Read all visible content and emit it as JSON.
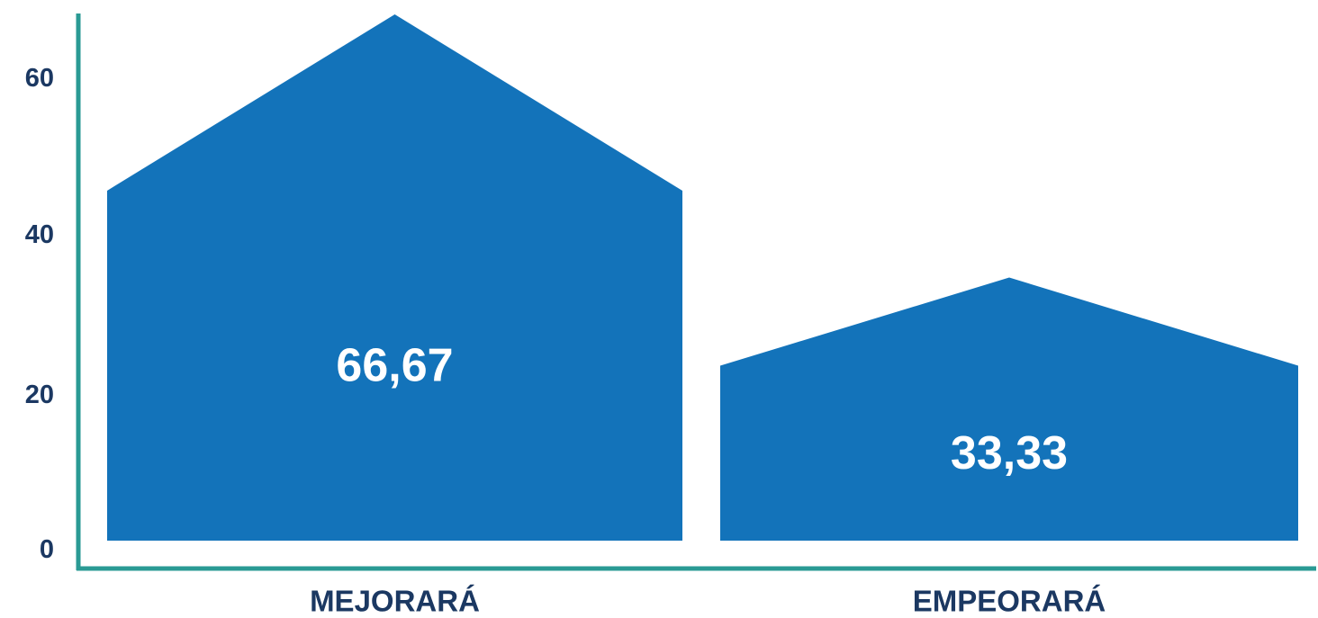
{
  "chart_data": {
    "type": "bar",
    "bar_shape": "house",
    "categories": [
      "MEJORARÁ",
      "EMPEORARÁ"
    ],
    "values": [
      66.67,
      33.33
    ],
    "data_labels": [
      "66,67",
      "33,33"
    ],
    "yticks": [
      0,
      20,
      40,
      60
    ],
    "ytick_labels": [
      "0",
      "20",
      "40",
      "60"
    ],
    "ylim": [
      0,
      67
    ],
    "grid": false,
    "colors": {
      "bar": "#1373BA",
      "axis": "#2A9A94",
      "text": "#1B3862",
      "data_label": "#FFFFFF"
    }
  }
}
